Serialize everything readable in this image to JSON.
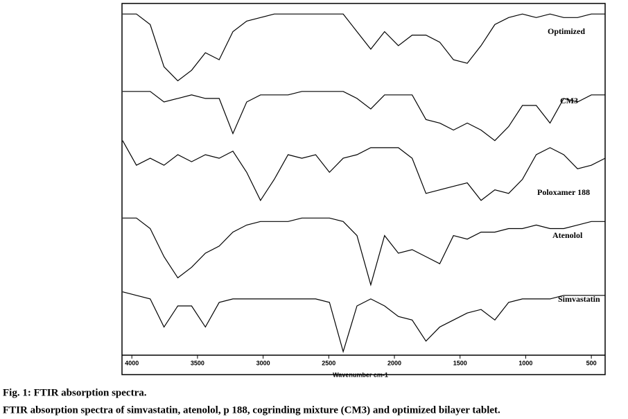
{
  "chart_data": {
    "type": "line",
    "xlabel": "Wavenumber cm-1",
    "x": [
      4070,
      3965,
      3860,
      3755,
      3650,
      3545,
      3440,
      3335,
      3230,
      3125,
      3020,
      2915,
      2810,
      2705,
      2600,
      2495,
      2390,
      2285,
      2180,
      2075,
      1970,
      1865,
      1760,
      1655,
      1550,
      1445,
      1340,
      1235,
      1130,
      1025,
      920,
      815,
      710,
      605,
      500,
      395
    ],
    "xlim": [
      4075,
      395
    ],
    "xticks": [
      4000,
      3500,
      3000,
      2500,
      2000,
      1500,
      1000,
      500
    ],
    "ylim": [
      0,
      100
    ],
    "series": [
      {
        "name": "Optimized",
        "color": "#000000",
        "values": [
          97,
          97,
          94,
          82,
          78,
          81,
          86,
          84,
          92,
          95,
          96,
          97,
          97,
          97,
          97,
          97,
          97,
          92,
          87,
          92,
          88,
          91,
          91,
          89,
          84,
          83,
          88,
          94,
          96,
          97,
          96,
          97,
          96,
          96,
          97,
          97
        ]
      },
      {
        "name": "CM3",
        "color": "#000000",
        "values": [
          75,
          75,
          75,
          72,
          73,
          74,
          73,
          73,
          63,
          72,
          74,
          74,
          74,
          75,
          75,
          75,
          75,
          73,
          70,
          74,
          74,
          74,
          67,
          66,
          64,
          66,
          64,
          61,
          65,
          71,
          71,
          66,
          73,
          72,
          74,
          74
        ]
      },
      {
        "name": "Poloxamer 188",
        "color": "#000000",
        "values": [
          61,
          54,
          56,
          54,
          57,
          55,
          57,
          56,
          58,
          52,
          44,
          50,
          57,
          56,
          57,
          52,
          56,
          57,
          59,
          59,
          59,
          56,
          46,
          47,
          48,
          49,
          44,
          47,
          46,
          50,
          57,
          59,
          57,
          53,
          54,
          56
        ]
      },
      {
        "name": "Atenolol",
        "color": "#000000",
        "values": [
          39,
          39,
          36,
          28,
          22,
          25,
          29,
          31,
          35,
          37,
          38,
          38,
          38,
          39,
          39,
          39,
          38,
          34,
          20,
          34,
          29,
          30,
          28,
          26,
          34,
          33,
          35,
          35,
          36,
          36,
          37,
          36,
          36,
          37,
          38,
          38
        ]
      },
      {
        "name": "Simvastatin",
        "color": "#000000",
        "values": [
          18,
          17,
          16,
          8,
          14,
          14,
          8,
          15,
          16,
          16,
          16,
          16,
          16,
          16,
          16,
          15,
          1,
          14,
          16,
          14,
          11,
          10,
          4,
          8,
          10,
          12,
          13,
          10,
          15,
          16,
          16,
          16,
          17,
          17,
          17,
          17
        ]
      }
    ]
  },
  "caption": {
    "title": "Fig. 1: FTIR absorption spectra.",
    "text": "FTIR absorption spectra of simvastatin, atenolol, p 188, cogrinding mixture (CM3) and optimized bilayer tablet."
  }
}
